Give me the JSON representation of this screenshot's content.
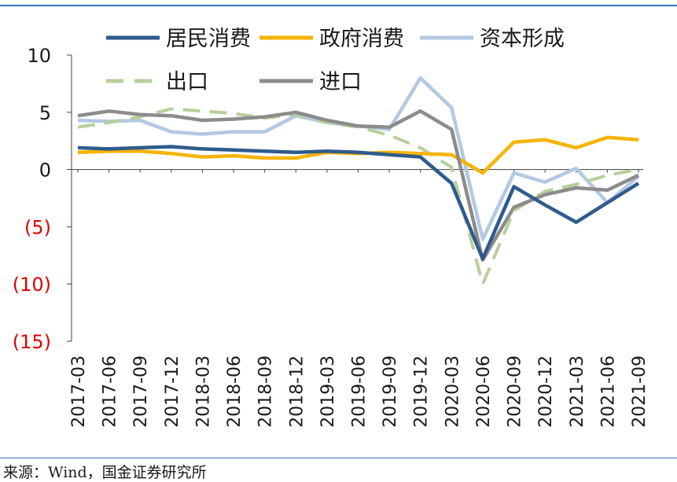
{
  "source_note": "来源：Wind，国金证券研究所",
  "colors": {
    "居民消费": "#2f5b8c",
    "政府消费": "#f5b400",
    "资本形成": "#b4c8e3",
    "出口": "#b7d09a",
    "进口": "#8c8c8c",
    "axis": "#404040",
    "negative_tick": "#e00000",
    "rule": "#2e75b6"
  },
  "chart_data": {
    "type": "line",
    "title": "",
    "xlabel": "",
    "ylabel": "",
    "ylim": [
      -15,
      10
    ],
    "yticks": [
      10,
      5,
      0,
      -5,
      -10,
      -15
    ],
    "ytick_labels": [
      "10",
      "5",
      "0",
      "(5)",
      "(10)",
      "(15)"
    ],
    "grid": false,
    "legend_position": "top",
    "categories": [
      "2017-03",
      "2017-06",
      "2017-09",
      "2017-12",
      "2018-03",
      "2018-06",
      "2018-09",
      "2018-12",
      "2019-03",
      "2019-06",
      "2019-09",
      "2019-12",
      "2020-03",
      "2020-06",
      "2020-09",
      "2020-12",
      "2021-03",
      "2021-06",
      "2021-09"
    ],
    "series": [
      {
        "name": "居民消费",
        "style": "solid",
        "values": [
          1.9,
          1.8,
          1.9,
          2.0,
          1.8,
          1.7,
          1.6,
          1.5,
          1.6,
          1.5,
          1.3,
          1.1,
          -1.2,
          -7.8,
          -1.5,
          -3.1,
          -4.6,
          -2.9,
          -1.2
        ]
      },
      {
        "name": "政府消费",
        "style": "solid",
        "values": [
          1.5,
          1.6,
          1.6,
          1.4,
          1.1,
          1.2,
          1.0,
          1.0,
          1.5,
          1.4,
          1.5,
          1.4,
          1.3,
          -0.3,
          2.4,
          2.6,
          1.9,
          2.8,
          2.6
        ]
      },
      {
        "name": "资本形成",
        "style": "solid",
        "values": [
          4.3,
          4.2,
          4.3,
          3.3,
          3.1,
          3.3,
          3.3,
          4.7,
          4.1,
          3.8,
          3.5,
          8.0,
          5.4,
          -6.1,
          -0.3,
          -1.1,
          0.1,
          -2.9,
          -0.6
        ]
      },
      {
        "name": "出口",
        "style": "dashed",
        "values": [
          3.7,
          4.1,
          4.6,
          5.3,
          5.1,
          4.9,
          4.5,
          4.8,
          4.1,
          3.7,
          3.0,
          1.9,
          0.2,
          -10.0,
          -3.6,
          -1.9,
          -1.3,
          -0.5,
          0.0
        ]
      },
      {
        "name": "进口",
        "style": "solid",
        "values": [
          4.7,
          5.1,
          4.8,
          4.7,
          4.3,
          4.4,
          4.6,
          5.0,
          4.3,
          3.8,
          3.7,
          5.1,
          3.5,
          -7.9,
          -3.3,
          -2.2,
          -1.6,
          -1.8,
          -0.5
        ]
      }
    ]
  }
}
